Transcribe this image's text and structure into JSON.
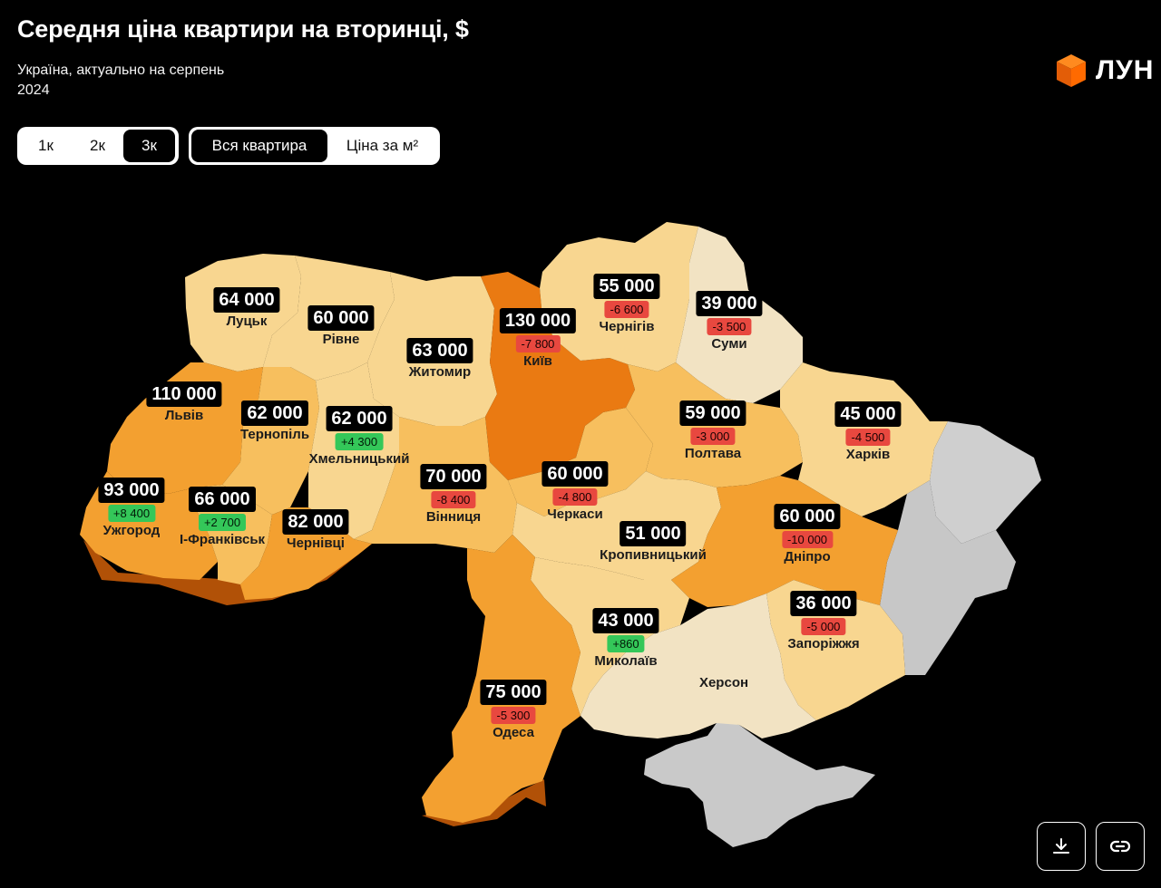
{
  "header": {
    "title": "Середня ціна квартири на вторинці, $",
    "subtitle": "Україна, актуально на серпень 2024"
  },
  "logo": {
    "text": "ЛУН",
    "icon": "cube-logo-icon"
  },
  "room_filter": {
    "options": [
      "1к",
      "2к",
      "3к"
    ],
    "selected": "3к"
  },
  "price_mode": {
    "options": [
      "Вся квартира",
      "Ціна за м²"
    ],
    "selected": "Вся квартира"
  },
  "colors": {
    "highest": "#ea7a12",
    "high": "#f3a030",
    "mid": "#f7bf5e",
    "low": "#f8d690",
    "lowest": "#f2e3c3",
    "no_data": "#c9c9c9",
    "negative_change": "#e8483f",
    "positive_change": "#34c759"
  },
  "regions": [
    {
      "city": "Луцьк",
      "price": "64 000",
      "change": ""
    },
    {
      "city": "Рівне",
      "price": "60 000",
      "change": ""
    },
    {
      "city": "Житомир",
      "price": "63 000",
      "change": ""
    },
    {
      "city": "Київ",
      "price": "130 000",
      "change": "-7 800"
    },
    {
      "city": "Чернігів",
      "price": "55 000",
      "change": "-6 600"
    },
    {
      "city": "Суми",
      "price": "39 000",
      "change": "-3 500"
    },
    {
      "city": "Львів",
      "price": "110 000",
      "change": ""
    },
    {
      "city": "Тернопіль",
      "price": "62 000",
      "change": ""
    },
    {
      "city": "Хмельницький",
      "price": "62 000",
      "change": "+4 300"
    },
    {
      "city": "Полтава",
      "price": "59 000",
      "change": "-3 000"
    },
    {
      "city": "Харків",
      "price": "45 000",
      "change": "-4 500"
    },
    {
      "city": "Ужгород",
      "price": "93 000",
      "change": "+8 400"
    },
    {
      "city": "І-Франківськ",
      "price": "66 000",
      "change": "+2 700"
    },
    {
      "city": "Чернівці",
      "price": "82 000",
      "change": ""
    },
    {
      "city": "Вінниця",
      "price": "70 000",
      "change": "-8 400"
    },
    {
      "city": "Черкаси",
      "price": "60 000",
      "change": "-4 800"
    },
    {
      "city": "Кропивницький",
      "price": "51 000",
      "change": ""
    },
    {
      "city": "Дніпро",
      "price": "60 000",
      "change": "-10 000"
    },
    {
      "city": "Запоріжжя",
      "price": "36 000",
      "change": "-5 000"
    },
    {
      "city": "Миколаїв",
      "price": "43 000",
      "change": "+860"
    },
    {
      "city": "Одеса",
      "price": "75 000",
      "change": "-5 300"
    },
    {
      "city": "Херсон",
      "price": "",
      "change": ""
    }
  ],
  "actions": {
    "download": "download-icon",
    "share": "link-icon"
  }
}
